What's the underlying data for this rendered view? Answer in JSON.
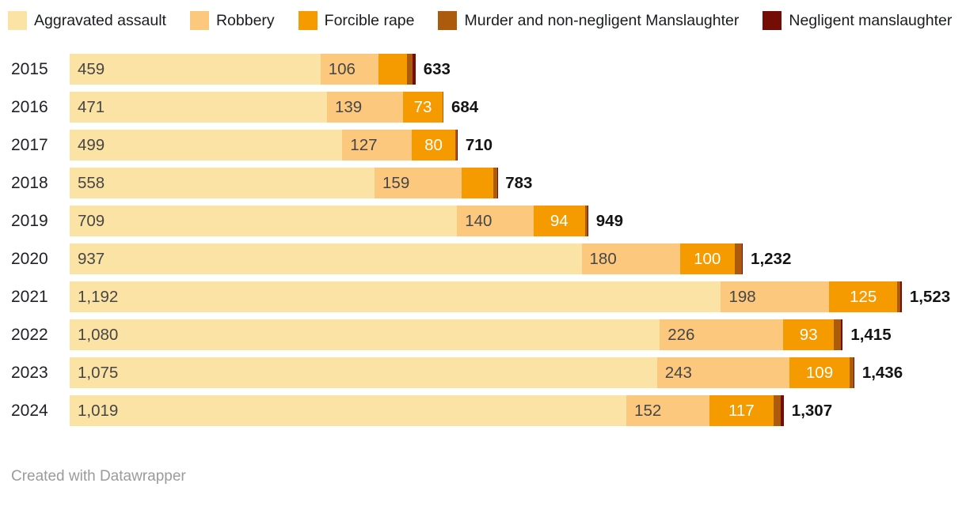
{
  "legend": {
    "items": [
      {
        "label": "Aggravated assault",
        "color": "#FBE3A5"
      },
      {
        "label": "Robbery",
        "color": "#FBC87E"
      },
      {
        "label": "Forcible rape",
        "color": "#F59B00"
      },
      {
        "label": "Murder and non-negligent Manslaughter",
        "color": "#AC5A0C"
      },
      {
        "label": "Negligent manslaughter",
        "color": "#740D05"
      }
    ]
  },
  "chart_data": {
    "type": "bar",
    "orientation": "horizontal",
    "stacked": true,
    "grid": false,
    "legend_position": "top",
    "categories": [
      "2015",
      "2016",
      "2017",
      "2018",
      "2019",
      "2020",
      "2021",
      "2022",
      "2023",
      "2024"
    ],
    "series": [
      {
        "name": "Aggravated assault",
        "color": "#FBE3A5",
        "label_style": "dark-left",
        "values": [
          459,
          471,
          499,
          558,
          709,
          937,
          1192,
          1080,
          1075,
          1019
        ],
        "labels": [
          "459",
          "471",
          "499",
          "558",
          "709",
          "937",
          "1,192",
          "1,080",
          "1,075",
          "1,019"
        ]
      },
      {
        "name": "Robbery",
        "color": "#FBC87E",
        "label_style": "dark-left",
        "values": [
          106,
          139,
          127,
          159,
          140,
          180,
          198,
          226,
          243,
          152
        ],
        "labels": [
          "106",
          "139",
          "127",
          "159",
          "140",
          "180",
          "198",
          "226",
          "243",
          "152"
        ]
      },
      {
        "name": "Forcible rape",
        "color": "#F59B00",
        "label_style": "light-center",
        "values": [
          52,
          73,
          80,
          58,
          94,
          100,
          125,
          93,
          109,
          117
        ],
        "labels": [
          "",
          "73",
          "80",
          "",
          "94",
          "100",
          "125",
          "93",
          "109",
          "117"
        ]
      },
      {
        "name": "Murder and non-negligent Manslaughter",
        "color": "#AC5A0C",
        "label_style": "none",
        "values": [
          10,
          1,
          3,
          7,
          5,
          14,
          6,
          13,
          8,
          14
        ],
        "labels": [
          "",
          "",
          "",
          "",
          "",
          "",
          "",
          "",
          "",
          ""
        ]
      },
      {
        "name": "Negligent manslaughter",
        "color": "#740D05",
        "label_style": "none",
        "values": [
          6,
          0,
          1,
          1,
          1,
          1,
          2,
          3,
          1,
          5
        ],
        "labels": [
          "",
          "",
          "",
          "",
          "",
          "",
          "",
          "",
          "",
          ""
        ]
      }
    ],
    "totals": [
      633,
      684,
      710,
      783,
      949,
      1232,
      1523,
      1415,
      1436,
      1307
    ],
    "total_labels": [
      "633",
      "684",
      "710",
      "783",
      "949",
      "1,232",
      "1,523",
      "1,415",
      "1,436",
      "1,307"
    ],
    "xlim": [
      0,
      1640
    ]
  },
  "footer": {
    "credit": "Created with Datawrapper"
  }
}
